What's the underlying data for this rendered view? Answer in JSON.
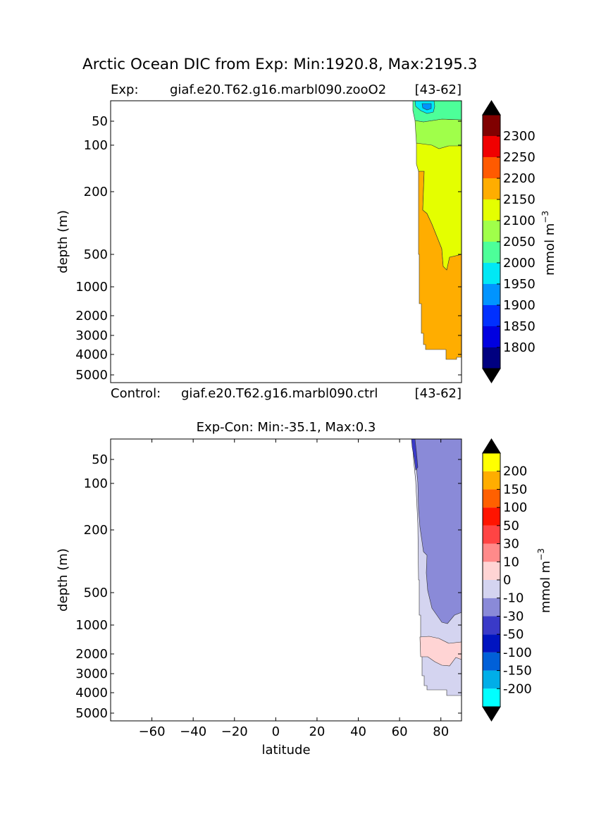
{
  "figure": {
    "suptitle": "Arctic Ocean DIC from Exp: Min:1920.8, Max:2195.3"
  },
  "chart_data": [
    {
      "type": "contour",
      "panel": "top",
      "header_left_label": "Exp:",
      "header_case": "giaf.e20.T62.g16.marbl090.zooO2",
      "header_years": "[43-62]",
      "footer_left_label": "Control:",
      "footer_case": "giaf.e20.T62.g16.marbl090.ctrl",
      "footer_years": "[43-62]",
      "ylabel": "depth (m)",
      "y_ticks": [
        50,
        100,
        200,
        500,
        1000,
        2000,
        3000,
        4000,
        5000
      ],
      "x_range": [
        -80,
        90
      ],
      "colorbar": {
        "label": "mmol m",
        "label_exp": "−3",
        "levels": [
          1775,
          1800,
          1850,
          1900,
          1950,
          2000,
          2050,
          2100,
          2150,
          2200,
          2250,
          2300,
          2325
        ],
        "tick_labels": [
          "1800",
          "1850",
          "1900",
          "1950",
          "2000",
          "2050",
          "2100",
          "2150",
          "2200",
          "2250",
          "2300"
        ],
        "colors": [
          "#000080",
          "#0000e0",
          "#0030ff",
          "#0094ff",
          "#00e8f5",
          "#4dff99",
          "#a0ff4a",
          "#e4ff00",
          "#ffad00",
          "#ff5a00",
          "#f00000",
          "#800000"
        ],
        "extend_color": "#000000"
      },
      "fields": [
        {
          "name": "1950-2000",
          "color": "#00e8f5"
        },
        {
          "name": "2000-2050",
          "color": "#4dff99"
        },
        {
          "name": "2050-2100",
          "color": "#a0ff4a"
        },
        {
          "name": "2100-2150",
          "color": "#e4ff00"
        },
        {
          "name": "2150-2200",
          "color": "#ffad00"
        },
        {
          "name": "1900-1950",
          "color": "#0094ff"
        }
      ]
    },
    {
      "type": "contour",
      "panel": "bottom",
      "title": "Exp-Con: Min:-35.1, Max:0.3",
      "ylabel": "depth (m)",
      "xlabel": "latitude",
      "y_ticks": [
        50,
        100,
        200,
        500,
        1000,
        2000,
        3000,
        4000,
        5000
      ],
      "x_ticks": [
        -60,
        -40,
        -20,
        0,
        20,
        40,
        60,
        80
      ],
      "x_range": [
        -80,
        90
      ],
      "colorbar": {
        "label": "mmol m",
        "label_exp": "−3",
        "levels": [
          -250,
          -200,
          -150,
          -100,
          -50,
          -30,
          -10,
          0,
          10,
          30,
          50,
          100,
          150,
          200,
          250
        ],
        "tick_labels": [
          "-200",
          "-150",
          "-100",
          "-50",
          "-30",
          "-10",
          "0",
          "10",
          "30",
          "50",
          "100",
          "150",
          "200"
        ],
        "colors": [
          "#00ffff",
          "#00aee8",
          "#0060d8",
          "#0014c0",
          "#3a3ac8",
          "#8a8ad8",
          "#d4d4f0",
          "#ffd4d4",
          "#ff8a8a",
          "#ff4444",
          "#ff1400",
          "#ff6000",
          "#ffad00",
          "#ffff00"
        ],
        "extend_color": "#000000"
      },
      "fields": [
        {
          "name": "-10-0",
          "color": "#d4d4f0"
        },
        {
          "name": "-30--10",
          "color": "#8a8ad8"
        },
        {
          "name": "-50--30",
          "color": "#3a3ac8"
        },
        {
          "name": "0-10",
          "color": "#ffd4d4"
        }
      ]
    }
  ]
}
